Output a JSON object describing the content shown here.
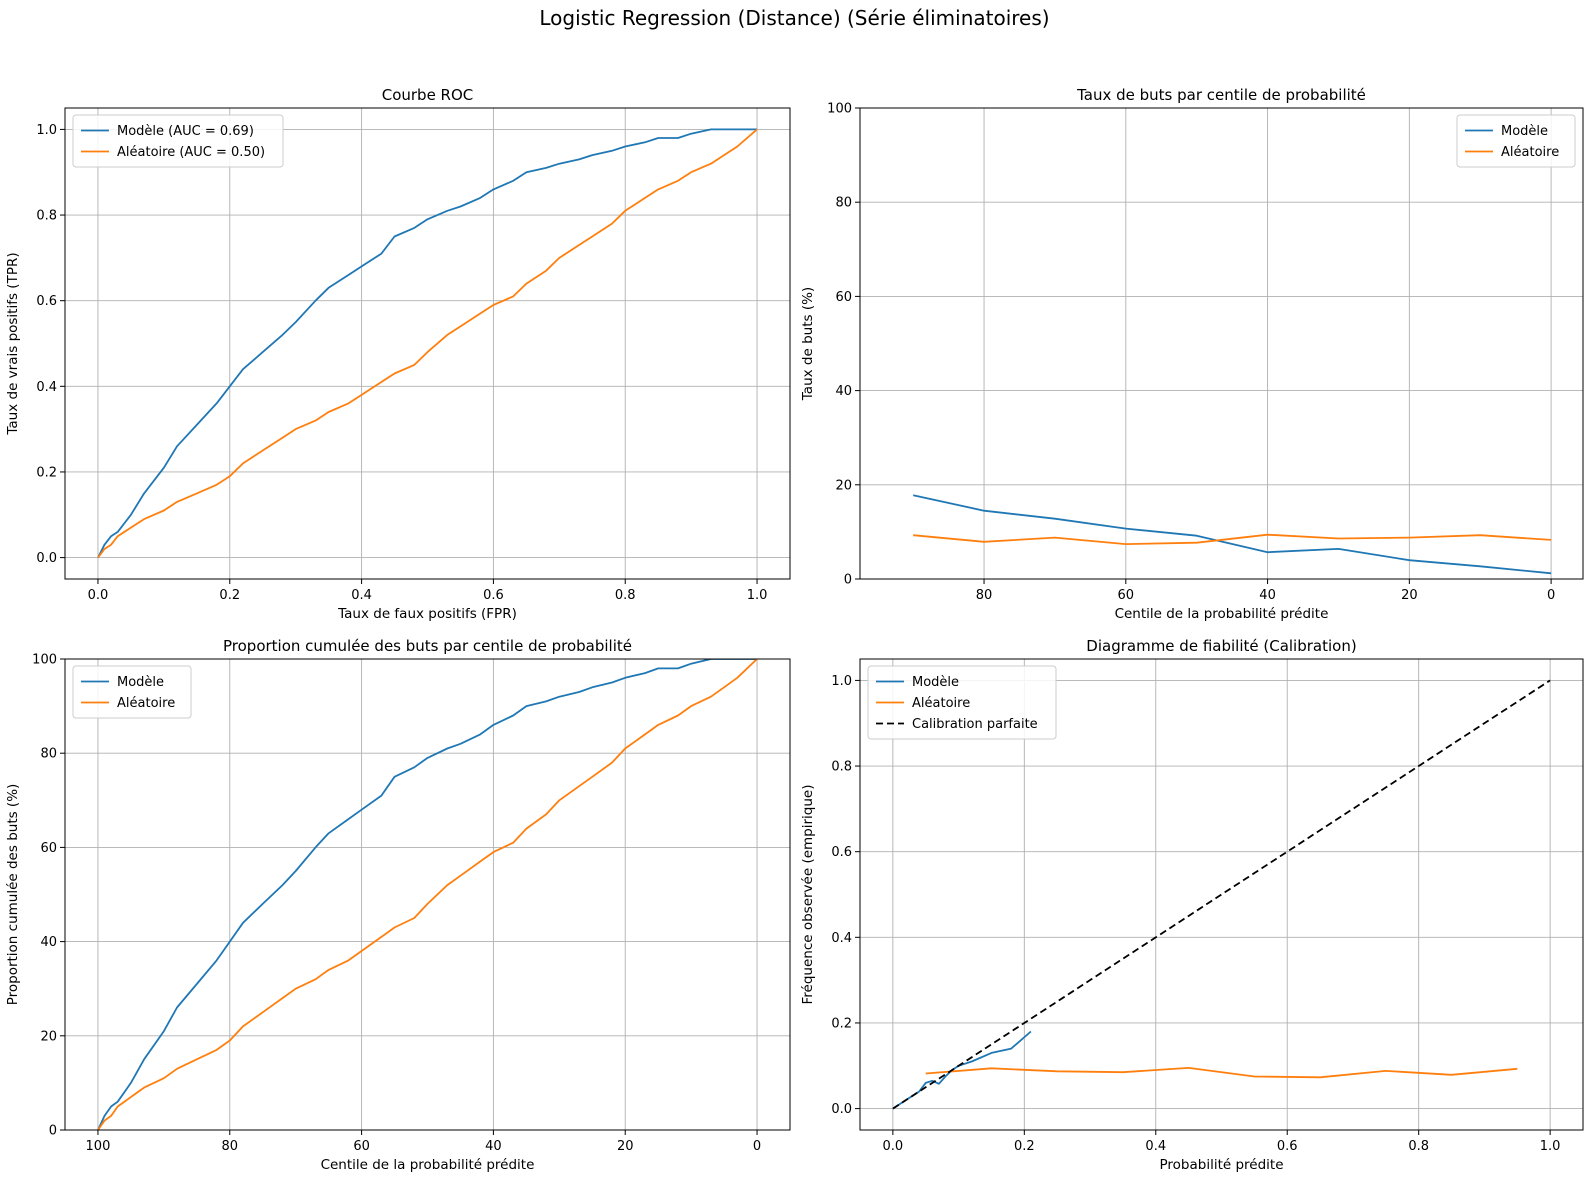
{
  "figure": {
    "title": "Logistic Regression (Distance) (Série éliminatoires)"
  },
  "colors": {
    "model": "#1f77b4",
    "random": "#ff7f0e",
    "perfect": "#000000",
    "grid": "#b0b0b0"
  },
  "chart_data": [
    {
      "id": "roc",
      "type": "line",
      "title": "Courbe ROC",
      "xlabel": "Taux de faux positifs (FPR)",
      "ylabel": "Taux de vrais positifs (TPR)",
      "xlim": [
        -0.05,
        1.05
      ],
      "ylim": [
        -0.05,
        1.05
      ],
      "xticks": [
        0.0,
        0.2,
        0.4,
        0.6,
        0.8,
        1.0
      ],
      "xtick_labels": [
        "0.0",
        "0.2",
        "0.4",
        "0.6",
        "0.8",
        "1.0"
      ],
      "yticks": [
        0.0,
        0.2,
        0.4,
        0.6,
        0.8,
        1.0
      ],
      "ytick_labels": [
        "0.0",
        "0.2",
        "0.4",
        "0.6",
        "0.8",
        "1.0"
      ],
      "grid": true,
      "legend": "upper left",
      "series": [
        {
          "name": "Modèle (AUC = 0.69)",
          "color": "#1f77b4",
          "x": [
            0,
            0.01,
            0.02,
            0.03,
            0.05,
            0.07,
            0.1,
            0.12,
            0.15,
            0.18,
            0.2,
            0.22,
            0.25,
            0.28,
            0.3,
            0.33,
            0.35,
            0.38,
            0.4,
            0.43,
            0.45,
            0.48,
            0.5,
            0.53,
            0.55,
            0.58,
            0.6,
            0.63,
            0.65,
            0.68,
            0.7,
            0.73,
            0.75,
            0.78,
            0.8,
            0.83,
            0.85,
            0.88,
            0.9,
            0.93,
            0.95,
            0.97,
            1.0
          ],
          "y": [
            0,
            0.03,
            0.05,
            0.06,
            0.1,
            0.15,
            0.21,
            0.26,
            0.31,
            0.36,
            0.4,
            0.44,
            0.48,
            0.52,
            0.55,
            0.6,
            0.63,
            0.66,
            0.68,
            0.71,
            0.75,
            0.77,
            0.79,
            0.81,
            0.82,
            0.84,
            0.86,
            0.88,
            0.9,
            0.91,
            0.92,
            0.93,
            0.94,
            0.95,
            0.96,
            0.97,
            0.98,
            0.98,
            0.99,
            1.0,
            1.0,
            1.0,
            1.0
          ]
        },
        {
          "name": "Aléatoire (AUC = 0.50)",
          "color": "#ff7f0e",
          "x": [
            0,
            0.01,
            0.02,
            0.03,
            0.05,
            0.07,
            0.1,
            0.12,
            0.15,
            0.18,
            0.2,
            0.22,
            0.25,
            0.28,
            0.3,
            0.33,
            0.35,
            0.38,
            0.4,
            0.43,
            0.45,
            0.48,
            0.5,
            0.53,
            0.55,
            0.58,
            0.6,
            0.63,
            0.65,
            0.68,
            0.7,
            0.73,
            0.75,
            0.78,
            0.8,
            0.83,
            0.85,
            0.88,
            0.9,
            0.93,
            0.95,
            0.97,
            1.0
          ],
          "y": [
            0,
            0.02,
            0.03,
            0.05,
            0.07,
            0.09,
            0.11,
            0.13,
            0.15,
            0.17,
            0.19,
            0.22,
            0.25,
            0.28,
            0.3,
            0.32,
            0.34,
            0.36,
            0.38,
            0.41,
            0.43,
            0.45,
            0.48,
            0.52,
            0.54,
            0.57,
            0.59,
            0.61,
            0.64,
            0.67,
            0.7,
            0.73,
            0.75,
            0.78,
            0.81,
            0.84,
            0.86,
            0.88,
            0.9,
            0.92,
            0.94,
            0.96,
            1.0
          ]
        }
      ]
    },
    {
      "id": "goal_rate",
      "type": "line",
      "title": "Taux de buts par centile de probabilité",
      "xlabel": "Centile de la probabilité prédite",
      "ylabel": "Taux de buts (%)",
      "xlim": [
        97.5,
        -4.5
      ],
      "ylim": [
        0,
        100
      ],
      "xticks": [
        80,
        60,
        40,
        20,
        0
      ],
      "xtick_labels": [
        "80",
        "60",
        "40",
        "20",
        "0"
      ],
      "yticks": [
        0,
        20,
        40,
        60,
        80,
        100
      ],
      "ytick_labels": [
        "0",
        "20",
        "40",
        "60",
        "80",
        "100"
      ],
      "grid": true,
      "legend": "upper right",
      "series": [
        {
          "name": "Modèle",
          "color": "#1f77b4",
          "x": [
            90,
            80,
            70,
            60,
            50,
            40,
            30,
            20,
            10,
            0
          ],
          "y": [
            17.8,
            14.5,
            12.8,
            10.7,
            9.2,
            5.7,
            6.4,
            4.0,
            2.7,
            1.2
          ]
        },
        {
          "name": "Aléatoire",
          "color": "#ff7f0e",
          "x": [
            90,
            80,
            70,
            60,
            50,
            40,
            30,
            20,
            10,
            0
          ],
          "y": [
            9.3,
            7.9,
            8.8,
            7.4,
            7.7,
            9.4,
            8.6,
            8.8,
            9.3,
            8.3
          ]
        }
      ]
    },
    {
      "id": "cumulative",
      "type": "line",
      "title": "Proportion cumulée des buts par centile de probabilité",
      "xlabel": "Centile de la probabilité prédite",
      "ylabel": "Proportion cumulée des buts (%)",
      "xlim": [
        105,
        -5
      ],
      "ylim": [
        0,
        100
      ],
      "xticks": [
        100,
        80,
        60,
        40,
        20,
        0
      ],
      "xtick_labels": [
        "100",
        "80",
        "60",
        "40",
        "20",
        "0"
      ],
      "yticks": [
        0,
        20,
        40,
        60,
        80,
        100
      ],
      "ytick_labels": [
        "0",
        "20",
        "40",
        "60",
        "80",
        "100"
      ],
      "grid": true,
      "legend": "upper left",
      "series": [
        {
          "name": "Modèle",
          "color": "#1f77b4",
          "x": [
            100,
            99,
            98,
            97,
            95,
            93,
            90,
            88,
            85,
            82,
            80,
            78,
            75,
            72,
            70,
            67,
            65,
            62,
            60,
            57,
            55,
            52,
            50,
            47,
            45,
            42,
            40,
            37,
            35,
            32,
            30,
            27,
            25,
            22,
            20,
            17,
            15,
            12,
            10,
            7,
            5,
            3,
            0
          ],
          "y": [
            0,
            3,
            5,
            6,
            10,
            15,
            21,
            26,
            31,
            36,
            40,
            44,
            48,
            52,
            55,
            60,
            63,
            66,
            68,
            71,
            75,
            77,
            79,
            81,
            82,
            84,
            86,
            88,
            90,
            91,
            92,
            93,
            94,
            95,
            96,
            97,
            98,
            98,
            99,
            100,
            100,
            100,
            100
          ]
        },
        {
          "name": "Aléatoire",
          "color": "#ff7f0e",
          "x": [
            100,
            99,
            98,
            97,
            95,
            93,
            90,
            88,
            85,
            82,
            80,
            78,
            75,
            72,
            70,
            67,
            65,
            62,
            60,
            57,
            55,
            52,
            50,
            47,
            45,
            42,
            40,
            37,
            35,
            32,
            30,
            27,
            25,
            22,
            20,
            17,
            15,
            12,
            10,
            7,
            5,
            3,
            0
          ],
          "y": [
            0,
            2,
            3,
            5,
            7,
            9,
            11,
            13,
            15,
            17,
            19,
            22,
            25,
            28,
            30,
            32,
            34,
            36,
            38,
            41,
            43,
            45,
            48,
            52,
            54,
            57,
            59,
            61,
            64,
            67,
            70,
            73,
            75,
            78,
            81,
            84,
            86,
            88,
            90,
            92,
            94,
            96,
            100
          ]
        }
      ]
    },
    {
      "id": "calibration",
      "type": "line",
      "title": "Diagramme de fiabilité (Calibration)",
      "xlabel": "Probabilité prédite",
      "ylabel": "Fréquence observée (empirique)",
      "xlim": [
        -0.05,
        1.05
      ],
      "ylim": [
        -0.05,
        1.05
      ],
      "xticks": [
        0.0,
        0.2,
        0.4,
        0.6,
        0.8,
        1.0
      ],
      "xtick_labels": [
        "0.0",
        "0.2",
        "0.4",
        "0.6",
        "0.8",
        "1.0"
      ],
      "yticks": [
        0.0,
        0.2,
        0.4,
        0.6,
        0.8,
        1.0
      ],
      "ytick_labels": [
        "0.0",
        "0.2",
        "0.4",
        "0.6",
        "0.8",
        "1.0"
      ],
      "grid": true,
      "legend": "upper left",
      "series": [
        {
          "name": "Modèle",
          "color": "#1f77b4",
          "x": [
            0.0,
            0.02,
            0.04,
            0.05,
            0.06,
            0.07,
            0.08,
            0.09,
            0.1,
            0.12,
            0.15,
            0.18,
            0.21
          ],
          "y": [
            0.0,
            0.02,
            0.04,
            0.06,
            0.065,
            0.058,
            0.075,
            0.09,
            0.1,
            0.11,
            0.13,
            0.14,
            0.18
          ]
        },
        {
          "name": "Aléatoire",
          "color": "#ff7f0e",
          "x": [
            0.05,
            0.15,
            0.25,
            0.35,
            0.45,
            0.55,
            0.65,
            0.75,
            0.85,
            0.95
          ],
          "y": [
            0.082,
            0.094,
            0.087,
            0.085,
            0.095,
            0.075,
            0.073,
            0.088,
            0.079,
            0.093
          ]
        },
        {
          "name": "Calibration parfaite",
          "color": "#000000",
          "dashed": true,
          "x": [
            0,
            1
          ],
          "y": [
            0,
            1
          ]
        }
      ]
    }
  ]
}
